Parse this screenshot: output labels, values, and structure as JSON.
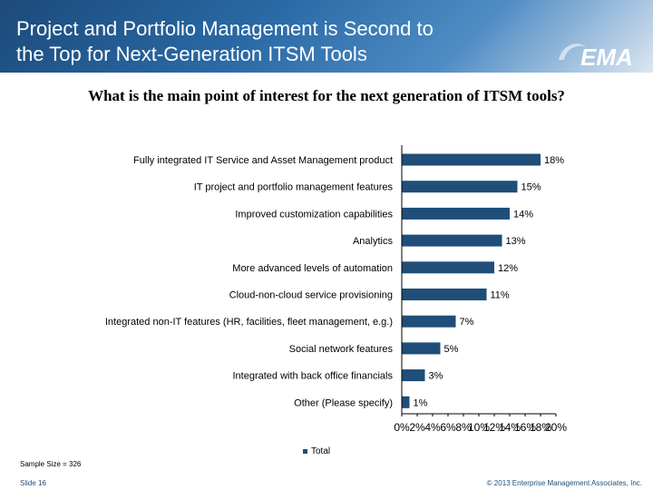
{
  "header": {
    "title_line1": "Project and Portfolio Management is Second to",
    "title_line2": "the Top for Next-Generation ITSM Tools",
    "logo_text": "EMA",
    "logo_icon": "ema-swoosh-icon"
  },
  "question": "What is the main point of interest for the next generation of ITSM tools?",
  "chart_data": {
    "type": "bar",
    "orientation": "horizontal",
    "categories": [
      "Fully integrated IT Service and Asset Management product",
      "IT project and portfolio management features",
      "Improved customization capabilities",
      "Analytics",
      "More advanced levels of automation",
      "Cloud-non-cloud service provisioning",
      "Integrated non-IT features (HR, facilities, fleet management, e.g.)",
      "Social network features",
      "Integrated with back office financials",
      "Other (Please specify)"
    ],
    "series": [
      {
        "name": "Total",
        "values": [
          18,
          15,
          14,
          13,
          12,
          11,
          7,
          5,
          3,
          1
        ],
        "labels": [
          "18%",
          "15%",
          "14%",
          "13%",
          "12%",
          "11%",
          "7%",
          "5%",
          "3%",
          "1%"
        ]
      }
    ],
    "xlim": [
      0,
      20
    ],
    "x_ticks": [
      "0%",
      "2%",
      "4%",
      "6%",
      "8%",
      "10%",
      "12%",
      "14%",
      "16%",
      "18%",
      "20%"
    ],
    "legend_position": "bottom",
    "grid": false,
    "bar_color": "#1f4e79"
  },
  "footer": {
    "sample_size": "Sample Size = 326",
    "slide": "Slide 16",
    "copyright": "© 2013 Enterprise Management Associates, Inc."
  }
}
